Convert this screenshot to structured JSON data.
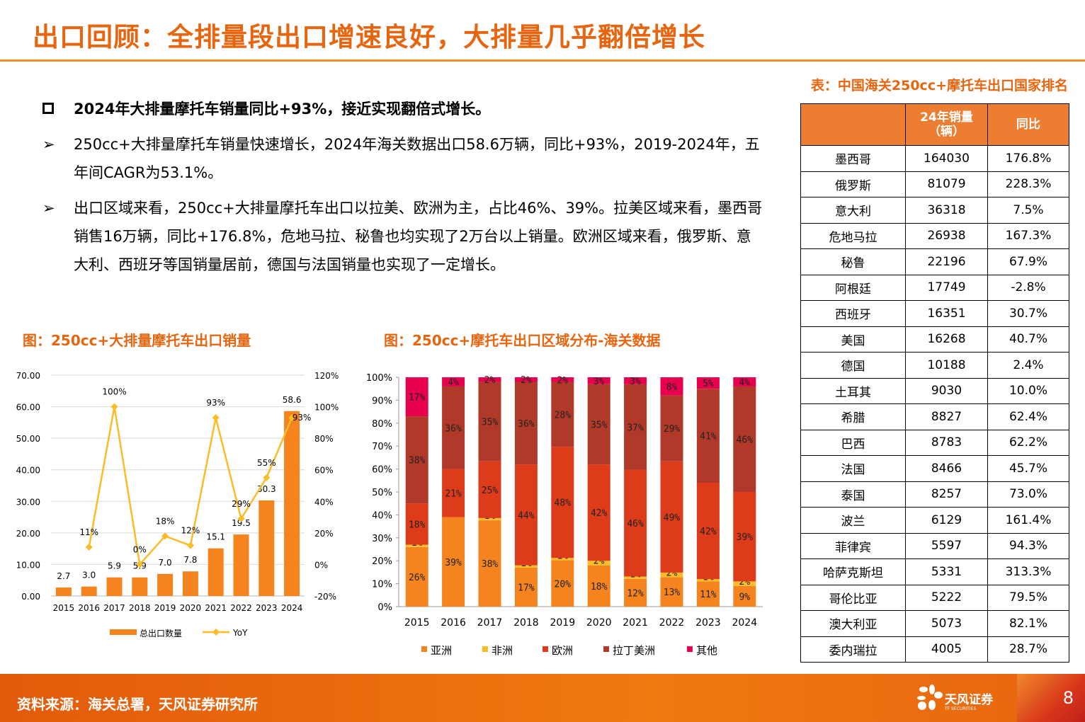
{
  "header": {
    "title": "出口回顾：全排量段出口增速良好，大排量几乎翻倍增长"
  },
  "bullets": [
    "2024年大排量摩托车销量同比+93%，接近实现翻倍式增长。",
    "250cc+大排量摩托车销量快速增长，2024年海关数据出口58.6万辆，同比+93%，2019-2024年，五年间CAGR为53.1%。",
    "出口区域来看，250cc+大排量摩托车出口以拉美、欧洲为主，占比46%、39%。拉美区域来看，墨西哥销售16万辆，同比+176.8%，危地马拉、秘鲁也均实现了2万台以上销量。欧洲区域来看，俄罗斯、意大利、西班牙等国销量居前，德国与法国销量也实现了一定增长。"
  ],
  "chart_data": [
    {
      "type": "bar+line",
      "title": "图：250cc+大排量摩托车出口销量",
      "categories": [
        "2015",
        "2016",
        "2017",
        "2018",
        "2019",
        "2020",
        "2021",
        "2022",
        "2023",
        "2024"
      ],
      "series": [
        {
          "name": "总出口数量",
          "type": "bar",
          "axis": "left",
          "values": [
            2.7,
            3.0,
            5.9,
            5.9,
            7.0,
            7.8,
            15.1,
            19.5,
            30.3,
            58.6
          ],
          "labels": [
            "2.7",
            "3.0",
            "5.9",
            "5.9",
            "7.0",
            "7.8",
            "15.1",
            "19.5",
            "30.3",
            "58.6"
          ],
          "color": "#F5841F"
        },
        {
          "name": "YoY",
          "type": "line",
          "axis": "right",
          "values": [
            null,
            11,
            100,
            0,
            18,
            12,
            93,
            29,
            55,
            93
          ],
          "labels": [
            "",
            "11%",
            "100%",
            "0%",
            "18%",
            "12%",
            "93%",
            "29%",
            "55%",
            "93%"
          ],
          "color": "#FBBC26"
        }
      ],
      "ylim": [
        0,
        70
      ],
      "yticks": [
        "0.00",
        "10.00",
        "20.00",
        "30.00",
        "40.00",
        "50.00",
        "60.00",
        "70.00"
      ],
      "y2lim": [
        -20,
        120
      ],
      "y2ticks": [
        "-20%",
        "0%",
        "20%",
        "40%",
        "60%",
        "80%",
        "100%",
        "120%"
      ],
      "grid": true,
      "legend": "bottom"
    },
    {
      "type": "bar",
      "stacked": true,
      "title": "图：250cc+摩托车出口区域分布-海关数据",
      "categories": [
        "2015",
        "2016",
        "2017",
        "2018",
        "2019",
        "2020",
        "2021",
        "2022",
        "2023",
        "2024"
      ],
      "series": [
        {
          "name": "亚洲",
          "color": "#F5841F",
          "values": [
            26,
            39,
            38,
            17,
            20,
            18,
            12,
            13,
            11,
            9
          ]
        },
        {
          "name": "非洲",
          "color": "#FBBC26",
          "values": [
            1,
            0,
            1,
            1,
            1,
            2,
            1,
            2,
            1,
            2
          ]
        },
        {
          "name": "欧洲",
          "color": "#DE3B1A",
          "values": [
            18,
            21,
            25,
            44,
            48,
            42,
            46,
            49,
            42,
            39
          ]
        },
        {
          "name": "拉丁美洲",
          "color": "#B0392A",
          "values": [
            38,
            36,
            35,
            36,
            28,
            35,
            37,
            29,
            41,
            46
          ]
        },
        {
          "name": "其他",
          "color": "#E8004F",
          "values": [
            17,
            4,
            2,
            2,
            2,
            3,
            3,
            8,
            5,
            4
          ]
        }
      ],
      "ylim": [
        0,
        100
      ],
      "yticks": [
        "0%",
        "10%",
        "20%",
        "30%",
        "40%",
        "50%",
        "60%",
        "70%",
        "80%",
        "90%",
        "100%"
      ],
      "legend": "bottom"
    }
  ],
  "table": {
    "title": "表：中国海关250cc+摩托车出口国家排名",
    "headers": [
      "",
      "24年销量（辆）",
      "同比"
    ],
    "rows": [
      [
        "墨西哥",
        "164030",
        "176.8%"
      ],
      [
        "俄罗斯",
        "81079",
        "228.3%"
      ],
      [
        "意大利",
        "36318",
        "7.5%"
      ],
      [
        "危地马拉",
        "26938",
        "167.3%"
      ],
      [
        "秘鲁",
        "22196",
        "67.9%"
      ],
      [
        "阿根廷",
        "17749",
        "-2.8%"
      ],
      [
        "西班牙",
        "16351",
        "30.7%"
      ],
      [
        "美国",
        "16268",
        "40.7%"
      ],
      [
        "德国",
        "10188",
        "2.4%"
      ],
      [
        "土耳其",
        "9030",
        "10.0%"
      ],
      [
        "希腊",
        "8827",
        "62.4%"
      ],
      [
        "巴西",
        "8783",
        "62.2%"
      ],
      [
        "法国",
        "8466",
        "45.7%"
      ],
      [
        "泰国",
        "8257",
        "73.0%"
      ],
      [
        "波兰",
        "6129",
        "161.4%"
      ],
      [
        "菲律宾",
        "5597",
        "94.3%"
      ],
      [
        "哈萨克斯坦",
        "5331",
        "313.3%"
      ],
      [
        "哥伦比亚",
        "5222",
        "79.5%"
      ],
      [
        "澳大利亚",
        "5073",
        "82.1%"
      ],
      [
        "委内瑞拉",
        "4005",
        "28.7%"
      ]
    ]
  },
  "footer": {
    "source": "资料来源：海关总署，天风证券研究所",
    "logo_cn": "天风证券",
    "logo_en": "TF SECURITIES",
    "page": "8"
  }
}
